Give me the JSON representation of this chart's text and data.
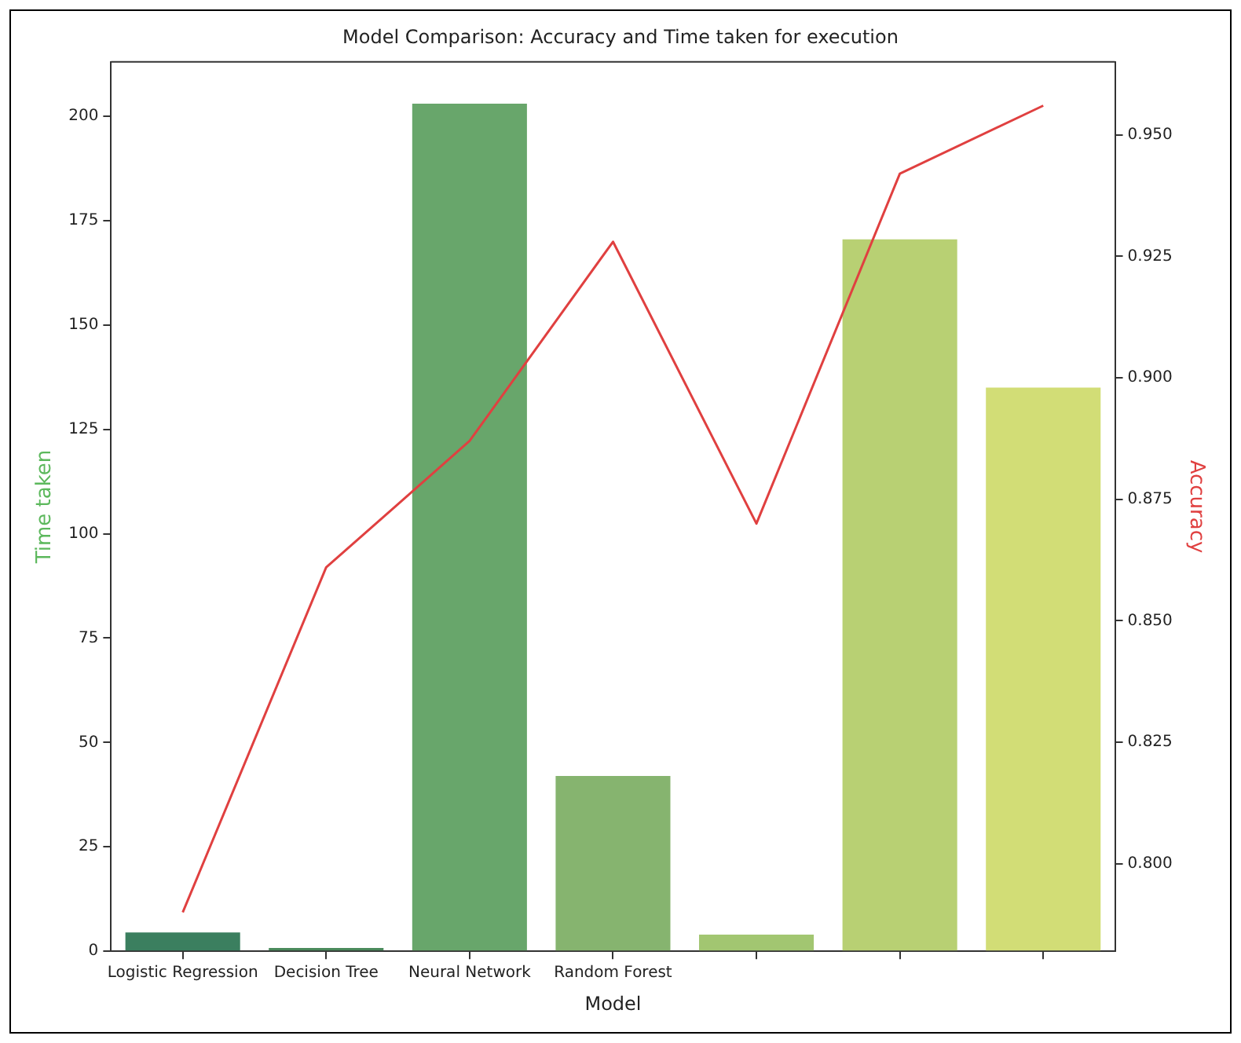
{
  "chart_data": {
    "type": "bar",
    "title": "Model Comparison: Accuracy and Time taken for execution",
    "xlabel": "Model",
    "ylabel": "Time taken",
    "y2label": "Accuracy",
    "categories": [
      "Logistic Regression",
      "Decision Tree",
      "Neural Network",
      "Random Forest",
      null,
      null,
      null
    ],
    "series": [
      {
        "colors": [
          "#3b7f5f",
          "#4a8a5c",
          "#68a66b",
          "#86b46f",
          "#a2c671",
          "#b8d073",
          "#d2dd76"
        ],
        "values": [
          4.5,
          0.8,
          203,
          42,
          4,
          170.5,
          135
        ]
      },
      {
        "type": "line",
        "axis": "y2",
        "color": "#e04040",
        "values": [
          0.79,
          0.861,
          0.887,
          0.928,
          0.87,
          0.942,
          0.956
        ]
      }
    ],
    "ylim": [
      0,
      213
    ],
    "yticks": [
      0,
      25,
      50,
      75,
      100,
      125,
      150,
      175,
      200
    ],
    "y2lim": [
      0.782,
      0.965
    ],
    "y2ticks": [
      {
        "value": 0.8,
        "label": "0.800"
      },
      {
        "value": 0.825,
        "label": "0.825"
      },
      {
        "value": 0.85,
        "label": "0.850"
      },
      {
        "value": 0.875,
        "label": "0.875"
      },
      {
        "value": 0.9,
        "label": "0.900"
      },
      {
        "value": 0.925,
        "label": "0.925"
      },
      {
        "value": 0.95,
        "label": "0.950"
      }
    ],
    "grid": false,
    "legend": false,
    "marker": "none",
    "line_style": "solid"
  }
}
